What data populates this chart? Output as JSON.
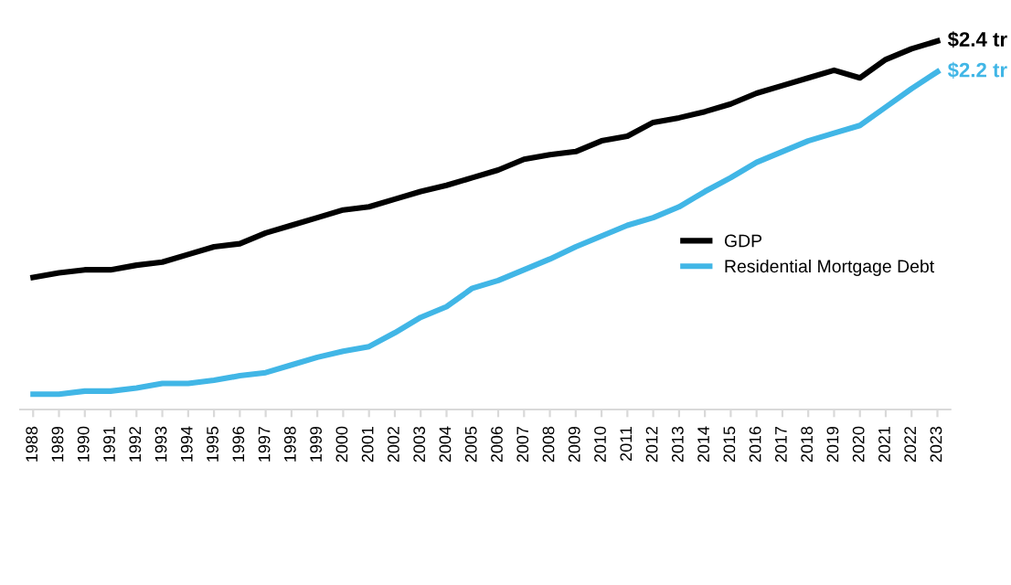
{
  "chart_data": {
    "type": "line",
    "categories": [
      "1988",
      "1989",
      "1990",
      "1991",
      "1992",
      "1993",
      "1994",
      "1995",
      "1996",
      "1997",
      "1998",
      "1999",
      "2000",
      "2001",
      "2002",
      "2003",
      "2004",
      "2005",
      "2006",
      "2007",
      "2008",
      "2009",
      "2010",
      "2011",
      "2012",
      "2013",
      "2014",
      "2015",
      "2016",
      "2017",
      "2018",
      "2019",
      "2020",
      "2021",
      "2022",
      "2023"
    ],
    "series": [
      {
        "name": "GDP",
        "color": "#000000",
        "values": [
          0.86,
          0.89,
          0.91,
          0.91,
          0.94,
          0.96,
          1.01,
          1.06,
          1.08,
          1.15,
          1.2,
          1.25,
          1.3,
          1.32,
          1.37,
          1.42,
          1.46,
          1.51,
          1.56,
          1.63,
          1.66,
          1.68,
          1.75,
          1.78,
          1.87,
          1.9,
          1.94,
          1.99,
          2.06,
          2.11,
          2.16,
          2.21,
          2.16,
          2.28,
          2.35,
          2.4
        ],
        "value_labels": [
          null,
          null,
          null,
          null,
          null,
          null,
          null,
          null,
          null,
          null,
          null,
          null,
          null,
          null,
          null,
          null,
          null,
          null,
          null,
          null,
          null,
          null,
          null,
          null,
          null,
          null,
          null,
          null,
          null,
          null,
          null,
          null,
          null,
          null,
          null,
          "$2.4 tr"
        ]
      },
      {
        "name": "Residential Mortgage Debt",
        "color": "#41b6e6",
        "values": [
          0.1,
          0.1,
          0.12,
          0.12,
          0.14,
          0.17,
          0.17,
          0.19,
          0.22,
          0.24,
          0.29,
          0.34,
          0.38,
          0.41,
          0.5,
          0.6,
          0.67,
          0.79,
          0.84,
          0.91,
          0.98,
          1.06,
          1.13,
          1.2,
          1.25,
          1.32,
          1.42,
          1.51,
          1.61,
          1.68,
          1.75,
          1.8,
          1.85,
          1.97,
          2.09,
          2.2
        ],
        "value_labels": [
          null,
          null,
          null,
          null,
          null,
          null,
          null,
          null,
          null,
          null,
          null,
          null,
          null,
          null,
          null,
          null,
          null,
          null,
          null,
          null,
          null,
          null,
          null,
          null,
          null,
          null,
          null,
          null,
          null,
          null,
          null,
          null,
          null,
          null,
          null,
          "$2.2 tr"
        ]
      }
    ],
    "legend": "right",
    "grid": false,
    "marker": "none",
    "line_style": "solid"
  }
}
